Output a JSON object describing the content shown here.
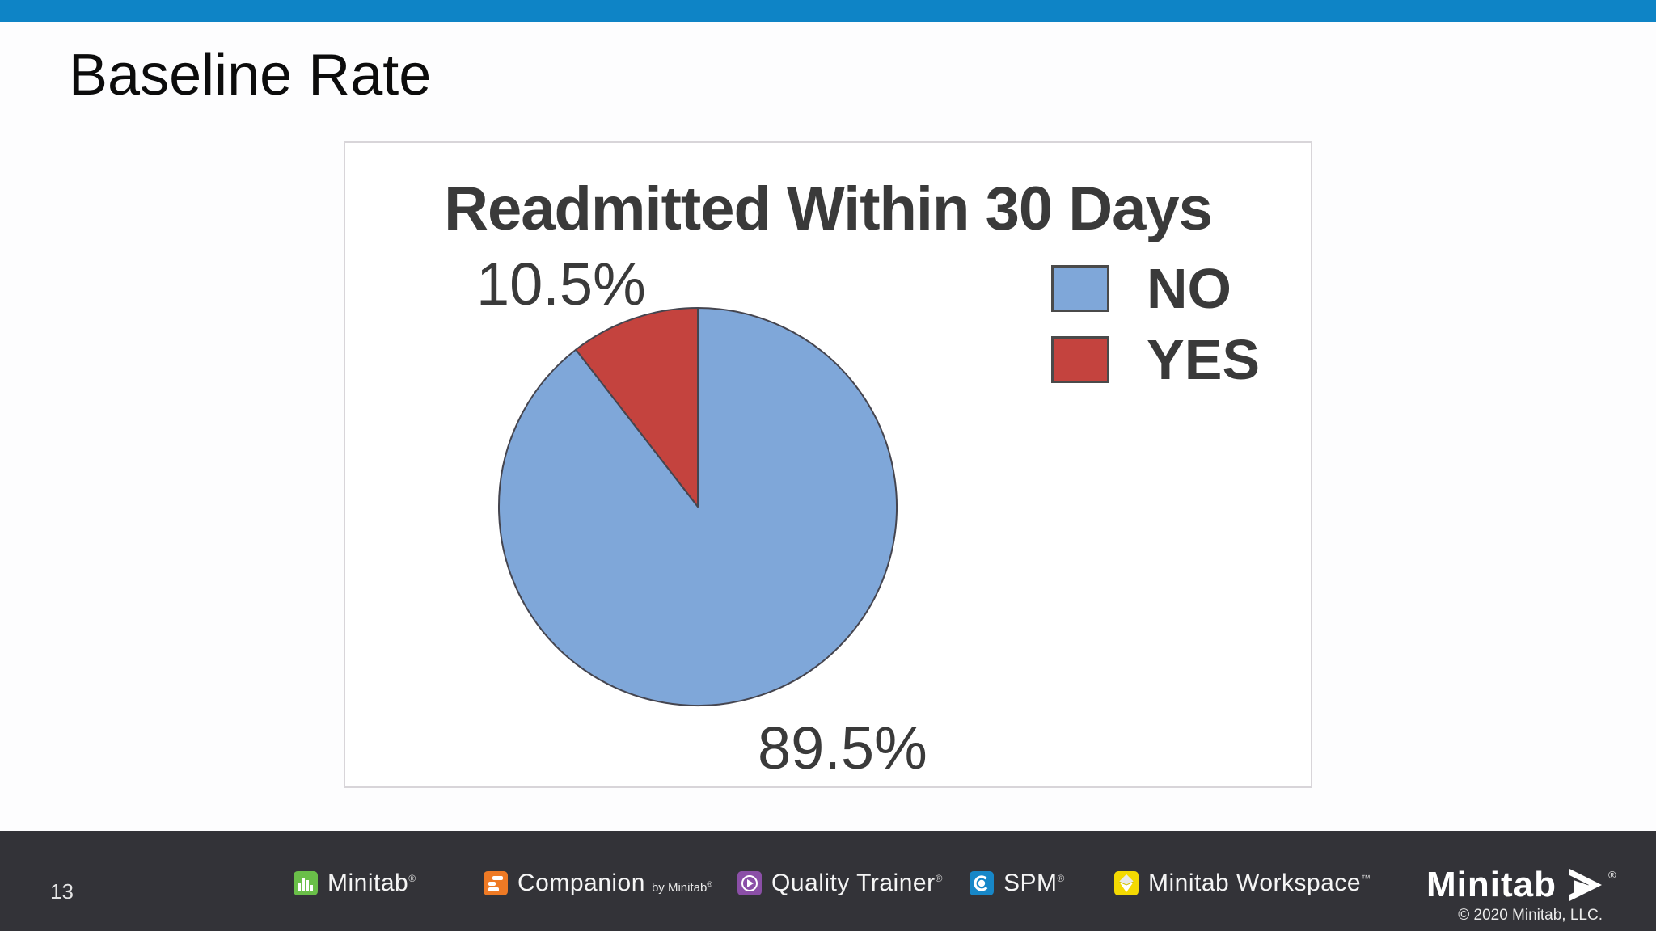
{
  "slide": {
    "title": "Baseline Rate",
    "page_number": "13"
  },
  "chart_data": {
    "type": "pie",
    "title": "Readmitted Within 30 Days",
    "slices": [
      {
        "label": "NO",
        "value": 89.5,
        "display": "89.5%",
        "color": "#7fa7d9"
      },
      {
        "label": "YES",
        "value": 10.5,
        "display": "10.5%",
        "color": "#c4433e"
      }
    ],
    "start_angle_deg": 0,
    "direction": "clockwise",
    "outline_color": "#45454f",
    "legend_position": "right",
    "text_color": "#3a3a3a"
  },
  "footer": {
    "page_number": "13",
    "brands": [
      {
        "label": "Minitab",
        "suffix": "®"
      },
      {
        "label": "Companion",
        "suffix": "®",
        "by": "by Minitab"
      },
      {
        "label": "Quality Trainer",
        "suffix": "®"
      },
      {
        "label": "SPM",
        "suffix": "®"
      },
      {
        "label": "Minitab Workspace",
        "suffix": "™"
      }
    ],
    "logo": {
      "label": "Minitab",
      "suffix": "®"
    },
    "copyright": "© 2020 Minitab, LLC.",
    "icon_colors": {
      "minitab_green": "#6abf49",
      "companion_orange": "#ee7a25",
      "quality_trainer_purple": "#8b4fa7",
      "spm_blue": "#1787c8",
      "workspace_yellow": "#f4d902"
    }
  },
  "colors": {
    "top_bar_blue": "#0e84c6",
    "footer_dark": "#333338",
    "panel_border": "#d8d5d9",
    "slide_bg": "#fdfdfe"
  }
}
